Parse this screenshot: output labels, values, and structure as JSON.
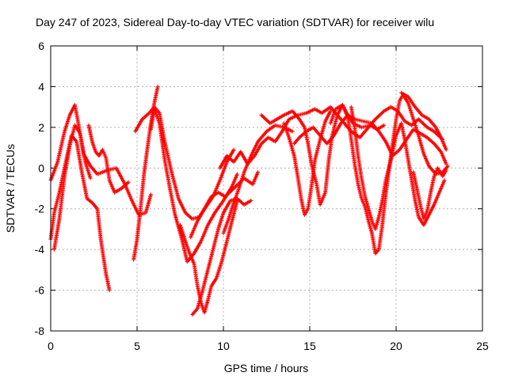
{
  "chart_data": {
    "type": "scatter",
    "title": "Day 247 of 2023, Sidereal Day-to-day VTEC variation (SDTVAR) for receiver wilu",
    "xlabel": "GPS time / hours",
    "ylabel": "SDTVAR / TECUs",
    "xlim": [
      0,
      25
    ],
    "ylim": [
      -8,
      6
    ],
    "xticks": [
      0,
      5,
      10,
      15,
      20,
      25
    ],
    "yticks": [
      -8,
      -6,
      -4,
      -2,
      0,
      2,
      4,
      6
    ],
    "grid": true,
    "marker": "+",
    "color": "#ff0000",
    "series": [
      {
        "name": "track-1",
        "points": [
          [
            0.0,
            -0.6
          ],
          [
            0.4,
            0.3
          ],
          [
            0.8,
            1.8
          ],
          [
            1.1,
            2.6
          ],
          [
            1.4,
            3.1
          ],
          [
            1.6,
            2.2
          ],
          [
            1.9,
            0.7
          ],
          [
            2.3,
            0.1
          ],
          [
            2.7,
            -0.3
          ],
          [
            3.3,
            -0.1
          ],
          [
            3.8,
            0.0
          ],
          [
            4.3,
            -0.8
          ],
          [
            4.7,
            -1.6
          ],
          [
            5.1,
            -2.3
          ],
          [
            5.5,
            -2.2
          ],
          [
            5.8,
            -1.3
          ]
        ]
      },
      {
        "name": "track-2",
        "points": [
          [
            0.0,
            -3.5
          ],
          [
            0.2,
            -2.2
          ],
          [
            0.5,
            -1.2
          ],
          [
            0.9,
            0.4
          ],
          [
            1.2,
            1.6
          ],
          [
            1.5,
            1.3
          ],
          [
            1.8,
            -0.2
          ],
          [
            2.1,
            -1.5
          ],
          [
            2.4,
            -1.7
          ],
          [
            2.7,
            -2.0
          ],
          [
            2.9,
            -3.5
          ],
          [
            3.2,
            -5.2
          ],
          [
            3.4,
            -6.0
          ]
        ]
      },
      {
        "name": "track-3",
        "points": [
          [
            0.2,
            -4.0
          ],
          [
            0.5,
            -2.5
          ],
          [
            0.8,
            -0.4
          ],
          [
            1.1,
            1.1
          ],
          [
            1.4,
            2.1
          ],
          [
            1.7,
            1.7
          ],
          [
            2.0,
            0.3
          ],
          [
            2.3,
            -0.5
          ]
        ]
      },
      {
        "name": "track-4",
        "points": [
          [
            2.2,
            2.1
          ],
          [
            2.4,
            1.3
          ],
          [
            2.6,
            0.8
          ],
          [
            2.8,
            0.6
          ],
          [
            3.0,
            0.9
          ],
          [
            3.2,
            0.5
          ],
          [
            3.4,
            -0.6
          ],
          [
            3.7,
            -1.2
          ],
          [
            4.1,
            -1.0
          ],
          [
            4.5,
            -0.7
          ]
        ]
      },
      {
        "name": "track-5",
        "points": [
          [
            4.8,
            -4.5
          ],
          [
            5.0,
            -3.5
          ],
          [
            5.2,
            -2.0
          ],
          [
            5.4,
            -0.3
          ],
          [
            5.6,
            1.0
          ],
          [
            5.8,
            2.2
          ],
          [
            6.0,
            3.2
          ],
          [
            6.2,
            4.0
          ]
        ]
      },
      {
        "name": "track-6",
        "points": [
          [
            4.9,
            1.8
          ],
          [
            5.3,
            2.4
          ],
          [
            5.7,
            2.7
          ],
          [
            6.0,
            3.0
          ],
          [
            6.3,
            2.7
          ],
          [
            6.6,
            1.3
          ],
          [
            7.0,
            -0.2
          ],
          [
            7.4,
            -1.5
          ],
          [
            7.8,
            -2.2
          ],
          [
            8.2,
            -2.5
          ],
          [
            8.6,
            -2.4
          ],
          [
            9.0,
            -1.9
          ],
          [
            9.4,
            -1.4
          ],
          [
            9.8,
            -0.6
          ],
          [
            10.2,
            0.3
          ],
          [
            10.6,
            0.9
          ]
        ]
      },
      {
        "name": "track-7",
        "points": [
          [
            5.8,
            1.9
          ],
          [
            6.0,
            2.9
          ],
          [
            6.3,
            2.2
          ],
          [
            6.6,
            0.4
          ],
          [
            6.9,
            -1.0
          ],
          [
            7.2,
            -2.3
          ],
          [
            7.6,
            -3.5
          ],
          [
            7.9,
            -4.6
          ],
          [
            8.3,
            -4.2
          ],
          [
            8.7,
            -3.6
          ],
          [
            9.1,
            -2.8
          ],
          [
            9.5,
            -2.2
          ],
          [
            10.0,
            -1.6
          ],
          [
            10.5,
            -0.9
          ],
          [
            10.8,
            -0.3
          ]
        ]
      },
      {
        "name": "track-8",
        "points": [
          [
            7.5,
            -2.8
          ],
          [
            7.8,
            -3.6
          ],
          [
            8.0,
            -4.1
          ],
          [
            8.3,
            -4.7
          ],
          [
            8.5,
            -5.8
          ],
          [
            8.7,
            -6.6
          ],
          [
            8.9,
            -7.1
          ],
          [
            9.1,
            -6.5
          ],
          [
            9.3,
            -5.8
          ],
          [
            9.6,
            -5.4
          ],
          [
            9.9,
            -4.6
          ],
          [
            10.2,
            -3.6
          ],
          [
            10.5,
            -2.6
          ],
          [
            10.8,
            -1.6
          ]
        ]
      },
      {
        "name": "track-9",
        "points": [
          [
            8.2,
            -7.2
          ],
          [
            8.5,
            -6.9
          ],
          [
            8.8,
            -6.0
          ],
          [
            9.1,
            -5.0
          ],
          [
            9.4,
            -4.0
          ],
          [
            9.7,
            -3.0
          ],
          [
            10.0,
            -2.2
          ],
          [
            10.4,
            -1.6
          ],
          [
            10.8,
            -1.5
          ],
          [
            11.2,
            -1.8
          ],
          [
            11.6,
            -1.6
          ]
        ]
      },
      {
        "name": "track-10",
        "points": [
          [
            8.1,
            -3.4
          ],
          [
            8.5,
            -2.6
          ],
          [
            8.9,
            -2.0
          ],
          [
            9.3,
            -1.4
          ],
          [
            9.7,
            -1.2
          ],
          [
            10.1,
            -1.4
          ],
          [
            10.6,
            -1.0
          ],
          [
            11.2,
            -0.5
          ],
          [
            11.7,
            -0.8
          ],
          [
            12.0,
            -0.2
          ]
        ]
      },
      {
        "name": "track-11",
        "points": [
          [
            10.0,
            -3.2
          ],
          [
            10.3,
            -2.5
          ],
          [
            10.6,
            -1.7
          ],
          [
            10.9,
            -1.0
          ],
          [
            11.2,
            -0.2
          ],
          [
            11.6,
            0.6
          ],
          [
            12.0,
            1.3
          ],
          [
            12.5,
            1.8
          ],
          [
            13.0,
            2.1
          ],
          [
            13.5,
            2.0
          ],
          [
            14.0,
            1.8
          ]
        ]
      },
      {
        "name": "track-12",
        "points": [
          [
            9.8,
            0.0
          ],
          [
            10.2,
            0.6
          ],
          [
            10.6,
            0.3
          ],
          [
            11.0,
            0.8
          ],
          [
            11.4,
            0.2
          ],
          [
            11.8,
            0.6
          ],
          [
            12.2,
            1.2
          ],
          [
            12.6,
            1.5
          ],
          [
            13.0,
            1.3
          ],
          [
            13.4,
            1.8
          ],
          [
            13.8,
            2.4
          ],
          [
            14.3,
            2.6
          ],
          [
            14.8,
            2.7
          ],
          [
            15.3,
            2.9
          ],
          [
            15.7,
            2.7
          ],
          [
            16.2,
            3.0
          ],
          [
            16.6,
            2.6
          ],
          [
            17.0,
            2.2
          ],
          [
            17.4,
            1.8
          ],
          [
            17.9,
            1.5
          ],
          [
            18.4,
            2.0
          ],
          [
            18.8,
            2.4
          ],
          [
            19.3,
            2.8
          ],
          [
            19.7,
            3.0
          ],
          [
            20.1,
            2.8
          ],
          [
            20.5,
            2.3
          ],
          [
            20.9,
            2.1
          ],
          [
            21.3,
            2.4
          ],
          [
            21.8,
            2.0
          ],
          [
            22.2,
            1.8
          ],
          [
            22.7,
            1.4
          ]
        ]
      },
      {
        "name": "track-13",
        "points": [
          [
            12.2,
            2.6
          ],
          [
            12.7,
            2.2
          ],
          [
            13.1,
            2.4
          ],
          [
            13.5,
            2.6
          ],
          [
            14.0,
            2.8
          ],
          [
            14.4,
            2.4
          ],
          [
            14.7,
            2.0
          ],
          [
            14.9,
            1.2
          ],
          [
            15.1,
            0.2
          ],
          [
            15.4,
            -0.8
          ],
          [
            15.6,
            -1.8
          ],
          [
            15.9,
            -1.2
          ],
          [
            16.1,
            0.4
          ],
          [
            16.3,
            1.6
          ],
          [
            16.6,
            2.6
          ],
          [
            16.9,
            3.1
          ],
          [
            17.2,
            2.6
          ],
          [
            17.5,
            2.2
          ],
          [
            18.0,
            2.0
          ],
          [
            18.5,
            2.1
          ],
          [
            18.9,
            1.9
          ],
          [
            19.3,
            2.1
          ]
        ]
      },
      {
        "name": "track-14",
        "points": [
          [
            14.1,
            1.2
          ],
          [
            14.4,
            1.5
          ],
          [
            14.8,
            1.8
          ],
          [
            15.2,
            2.0
          ],
          [
            15.6,
            1.6
          ],
          [
            16.0,
            1.2
          ],
          [
            16.4,
            1.6
          ],
          [
            16.8,
            2.2
          ],
          [
            17.2,
            2.6
          ],
          [
            17.6,
            2.4
          ],
          [
            18.1,
            2.3
          ],
          [
            18.6,
            2.2
          ],
          [
            19.0,
            1.8
          ],
          [
            19.4,
            1.3
          ],
          [
            19.8,
            0.6
          ],
          [
            20.2,
            0.9
          ],
          [
            20.6,
            1.4
          ],
          [
            21.0,
            1.9
          ],
          [
            21.4,
            1.7
          ],
          [
            21.8,
            1.5
          ],
          [
            22.2,
            1.2
          ],
          [
            22.6,
            0.8
          ],
          [
            22.9,
            0.2
          ]
        ]
      },
      {
        "name": "track-15",
        "points": [
          [
            16.2,
            2.2
          ],
          [
            16.5,
            2.9
          ],
          [
            16.9,
            3.1
          ],
          [
            17.2,
            2.5
          ],
          [
            17.4,
            1.4
          ],
          [
            17.6,
            0.2
          ],
          [
            17.8,
            -0.8
          ],
          [
            18.0,
            -1.5
          ],
          [
            18.2,
            -1.9
          ],
          [
            18.4,
            -2.6
          ],
          [
            18.6,
            -3.2
          ],
          [
            18.8,
            -4.2
          ],
          [
            19.0,
            -4.0
          ],
          [
            19.2,
            -2.8
          ],
          [
            19.4,
            -1.3
          ],
          [
            19.6,
            0.0
          ],
          [
            19.8,
            1.2
          ],
          [
            20.0,
            2.4
          ],
          [
            20.2,
            3.3
          ],
          [
            20.4,
            3.6
          ],
          [
            20.7,
            3.2
          ],
          [
            21.0,
            2.4
          ],
          [
            21.3,
            1.6
          ],
          [
            21.6,
            0.7
          ],
          [
            21.9,
            0.1
          ],
          [
            22.3,
            -0.3
          ],
          [
            22.7,
            -0.2
          ],
          [
            23.0,
            0.1
          ]
        ]
      },
      {
        "name": "track-16",
        "points": [
          [
            17.4,
            3.0
          ],
          [
            17.6,
            2.0
          ],
          [
            17.8,
            0.6
          ],
          [
            18.0,
            -0.5
          ],
          [
            18.2,
            -1.4
          ],
          [
            18.4,
            -2.0
          ],
          [
            18.6,
            -2.6
          ],
          [
            18.8,
            -3.0
          ],
          [
            19.0,
            -2.4
          ],
          [
            19.2,
            -1.6
          ],
          [
            19.4,
            -0.6
          ],
          [
            19.7,
            0.4
          ],
          [
            20.0,
            1.6
          ],
          [
            20.3,
            2.2
          ],
          [
            20.5,
            1.4
          ],
          [
            20.7,
            0.4
          ],
          [
            20.9,
            -0.6
          ],
          [
            21.1,
            -1.6
          ],
          [
            21.3,
            -2.4
          ],
          [
            21.6,
            -2.8
          ],
          [
            21.9,
            -2.3
          ],
          [
            22.2,
            -1.8
          ],
          [
            22.5,
            -1.2
          ],
          [
            22.8,
            -0.6
          ]
        ]
      },
      {
        "name": "track-17",
        "points": [
          [
            20.3,
            3.7
          ],
          [
            20.7,
            3.5
          ],
          [
            21.1,
            3.0
          ],
          [
            21.5,
            2.6
          ],
          [
            21.9,
            2.4
          ],
          [
            22.3,
            2.0
          ],
          [
            22.6,
            1.5
          ],
          [
            22.9,
            0.9
          ]
        ]
      },
      {
        "name": "track-18",
        "points": [
          [
            13.5,
            2.2
          ],
          [
            13.8,
            1.5
          ],
          [
            14.1,
            0.6
          ],
          [
            14.3,
            -0.4
          ],
          [
            14.5,
            -1.5
          ],
          [
            14.7,
            -2.3
          ],
          [
            14.9,
            -2.0
          ],
          [
            15.1,
            -0.9
          ],
          [
            15.3,
            0.4
          ],
          [
            15.6,
            1.4
          ],
          [
            15.9,
            2.3
          ],
          [
            16.2,
            2.8
          ]
        ]
      },
      {
        "name": "track-19",
        "points": [
          [
            21.0,
            -0.2
          ],
          [
            21.2,
            -1.0
          ],
          [
            21.4,
            -1.8
          ],
          [
            21.6,
            -2.5
          ],
          [
            21.8,
            -2.1
          ],
          [
            22.0,
            -1.2
          ],
          [
            22.2,
            -0.4
          ],
          [
            22.4,
            0.0
          ],
          [
            22.7,
            -0.4
          ],
          [
            22.9,
            -0.1
          ]
        ]
      }
    ]
  }
}
